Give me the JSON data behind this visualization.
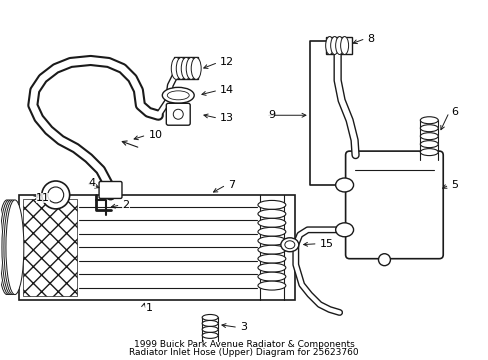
{
  "bg_color": "#ffffff",
  "line_color": "#1a1a1a",
  "title_line1": "1999 Buick Park Avenue Radiator & Components",
  "title_line2": "Radiator Inlet Hose (Upper) Diagram for 25623760",
  "title_fontsize": 6.5,
  "fig_width": 4.89,
  "fig_height": 3.6,
  "dpi": 100
}
